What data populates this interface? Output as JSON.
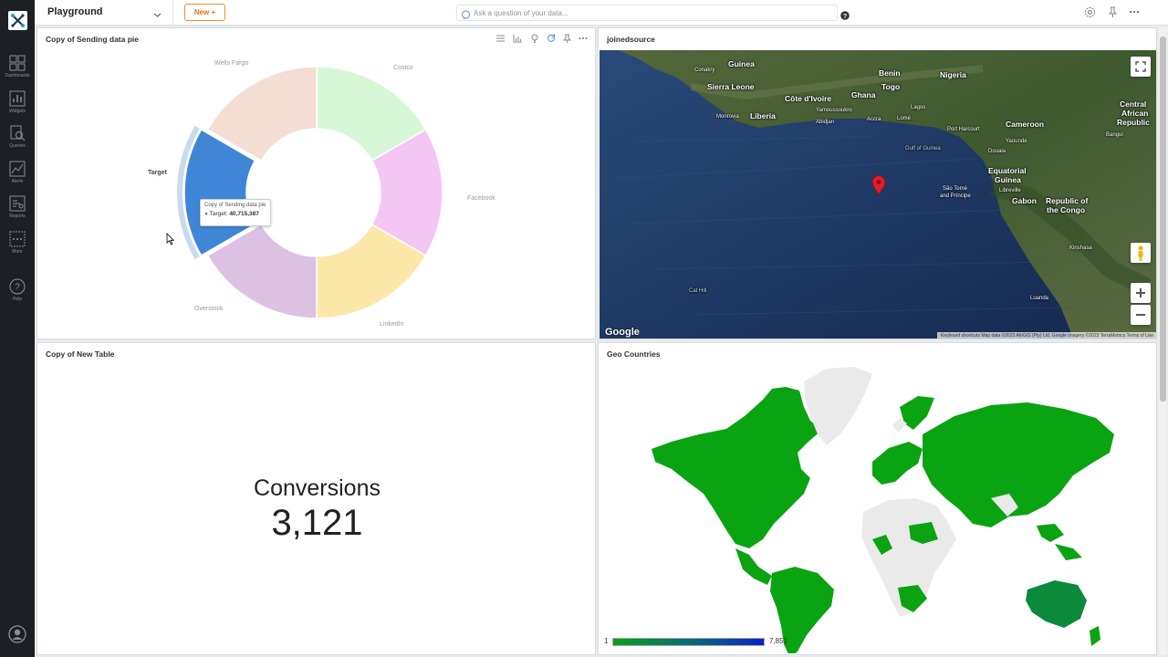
{
  "sidebar": {
    "items": [
      {
        "label": "Dashboards",
        "icon": "dashboards-icon"
      },
      {
        "label": "Widgets",
        "icon": "widgets-icon"
      },
      {
        "label": "Queries",
        "icon": "queries-icon"
      },
      {
        "label": "Alerts",
        "icon": "alerts-icon"
      },
      {
        "label": "Reports",
        "icon": "reports-icon"
      },
      {
        "label": "More",
        "icon": "more-icon"
      },
      {
        "label": "Help",
        "icon": "help-icon"
      }
    ]
  },
  "topbar": {
    "dashboard_title": "Playground",
    "new_button": "New +",
    "ask_placeholder": "Ask a question of your data..."
  },
  "panels": {
    "pie": {
      "title": "Copy of Sending data pie",
      "tooltip": {
        "title": "Copy of Sending data pie",
        "label": "Target:",
        "value": "40,715,387"
      }
    },
    "map": {
      "title": "joinedsource",
      "labels": {
        "guinea": "Guinea",
        "conakry": "Conakry",
        "benin": "Benin",
        "nigeria": "Nigeria",
        "sierra_leone": "Sierra Leone",
        "togo": "Togo",
        "cote_divoire": "Côte d'Ivoire",
        "ghana": "Ghana",
        "lagos": "Lagos",
        "central_african": "Central",
        "central_african2": "African",
        "central_african3": "Republic",
        "liberia": "Liberia",
        "monrovia": "Monrovia",
        "yamoussoukro": "Yamoussoukro",
        "abidjan": "Abidjan",
        "accra": "Accra",
        "lome": "Lomé",
        "port_harcourt": "Port Harcourt",
        "cameroon": "Cameroon",
        "bangui": "Bangui",
        "yaounde": "Yaoundé",
        "douala": "Douala",
        "gulf_of_guinea": "Gulf of Guinea",
        "equatorial": "Equatorial",
        "guinea2": "Guinea",
        "sao_tome": "São Tomé",
        "and_principe": "and Príncipe",
        "libreville": "Libreville",
        "gabon": "Gabon",
        "republic_of": "Republic of",
        "the_congo": "the Congo",
        "kinshasa": "Kinshasa",
        "cat_hill": "Cat Hill",
        "luanda": "Luanda"
      },
      "google": "Google",
      "attribution": "Keyboard shortcuts   Map data ©2023 AfriGIS (Pty) Ltd, Google Imagery ©2023 TerraMetrics   Terms of Use"
    },
    "kpi": {
      "title": "Copy of New Table",
      "label": "Conversions",
      "value": "3,121"
    },
    "geo": {
      "title": "Geo Countries",
      "legend_min": "1",
      "legend_max": "7,851"
    }
  },
  "chart_data": {
    "type": "pie",
    "donut": true,
    "title": "Copy of Sending data pie",
    "slices": [
      {
        "label": "Costco",
        "color": "#d6f7d6"
      },
      {
        "label": "Facebook",
        "color": "#f3c6f3"
      },
      {
        "label": "LinkedIn",
        "color": "#fbe7a8"
      },
      {
        "label": "Overstock",
        "color": "#dcc1e3"
      },
      {
        "label": "Target",
        "color": "#3f86d6",
        "value": 40715387,
        "highlighted": true
      },
      {
        "label": "Wells Fargo",
        "color": "#f4ddd2"
      }
    ],
    "legend": "labels-outside"
  }
}
